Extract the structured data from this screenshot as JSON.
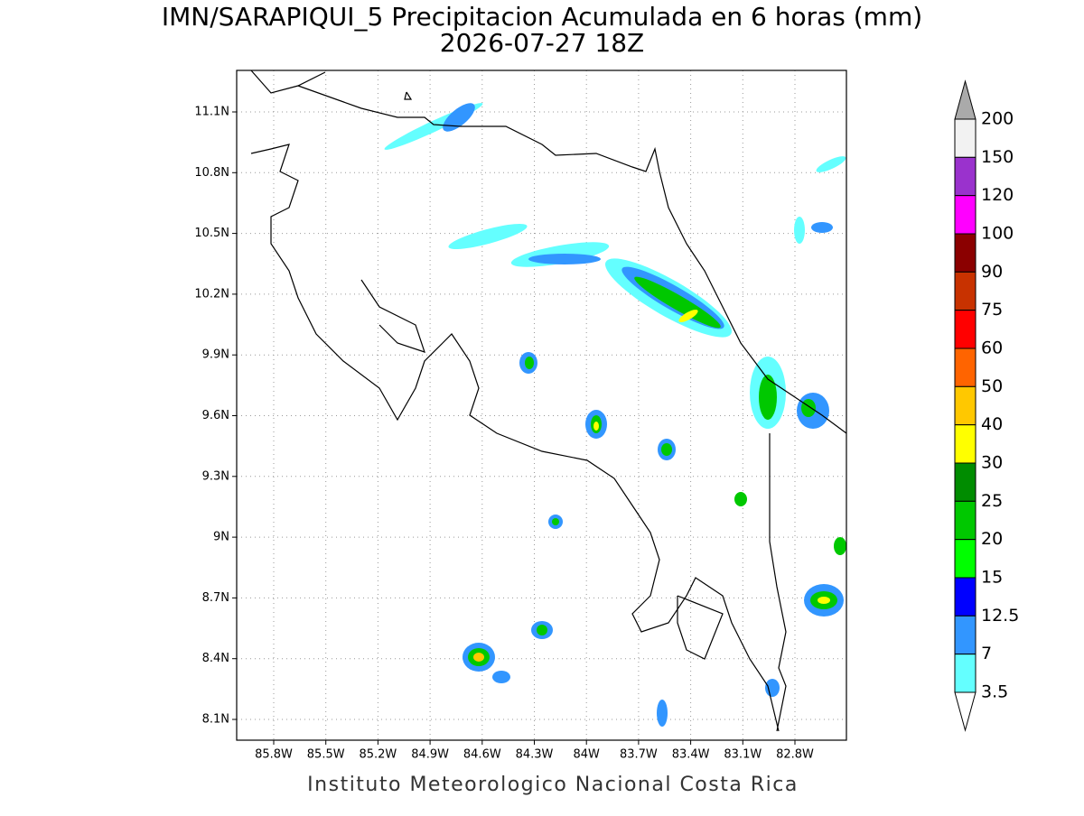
{
  "title": [
    "IMN/SARAPIQUI_5 Precipitacion Acumulada en 6 horas (mm)",
    "2026-07-27 18Z"
  ],
  "x_labels": [
    "85.8W",
    "85.5W",
    "85.2W",
    "84.9W",
    "84.6W",
    "84.3W",
    "84W",
    "83.7W",
    "83.4W",
    "83.1W",
    "82.8W"
  ],
  "y_labels": [
    "11.1N",
    "10.8N",
    "10.5N",
    "10.2N",
    "9.9N",
    "9.6N",
    "9.3N",
    "9N",
    "8.7N",
    "8.4N",
    "8.1N"
  ],
  "colorbar": {
    "labels": [
      "200",
      "150",
      "120",
      "100",
      "90",
      "75",
      "60",
      "50",
      "40",
      "30",
      "25",
      "20",
      "15",
      "12.5",
      "7",
      "3.5"
    ],
    "colors": [
      "#f2f2f2",
      "#9a32cd",
      "#ff00ff",
      "#8b0000",
      "#c83200",
      "#ff0000",
      "#ff6400",
      "#ffc800",
      "#ffff00",
      "#008c00",
      "#00c800",
      "#00ff00",
      "#0000ff",
      "#3296ff",
      "#64ffff"
    ],
    "over_color": "#aaaaaa",
    "under_color": "#ffffff"
  },
  "footer": "Instituto Meteorologico Nacional Costa Rica"
}
